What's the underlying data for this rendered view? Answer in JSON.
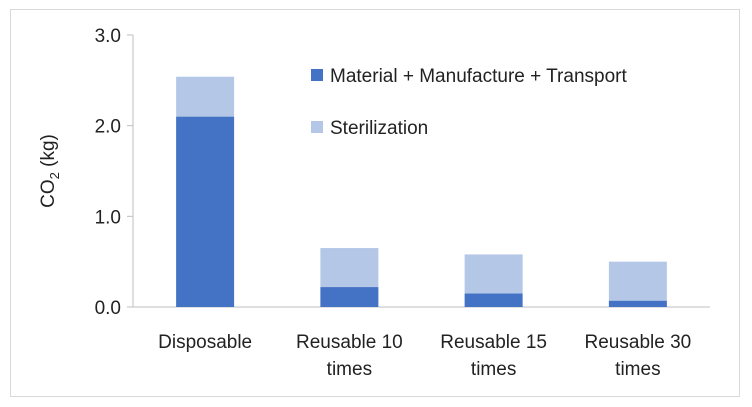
{
  "chart_data": {
    "type": "bar",
    "stacked": true,
    "categories": [
      [
        "Disposable"
      ],
      [
        "Reusable 10",
        "times"
      ],
      [
        "Reusable 15",
        "times"
      ],
      [
        "Reusable 30",
        "times"
      ]
    ],
    "series": [
      {
        "name": "Material + Manufacture + Transport",
        "color": "#4472c4",
        "values": [
          2.1,
          0.22,
          0.15,
          0.07
        ]
      },
      {
        "name": "Sterilization",
        "color": "#b4c7e7",
        "values": [
          0.44,
          0.43,
          0.43,
          0.43
        ]
      }
    ],
    "ylabel_main": "CO",
    "ylabel_sub": "2",
    "ylabel_unit": " (kg)",
    "ylim": [
      0,
      3.0
    ],
    "yticks": [
      "0.0",
      "1.0",
      "2.0",
      "3.0"
    ],
    "ytick_values": [
      0,
      1,
      2,
      3
    ],
    "grid": false,
    "legend_position": "top-right"
  }
}
